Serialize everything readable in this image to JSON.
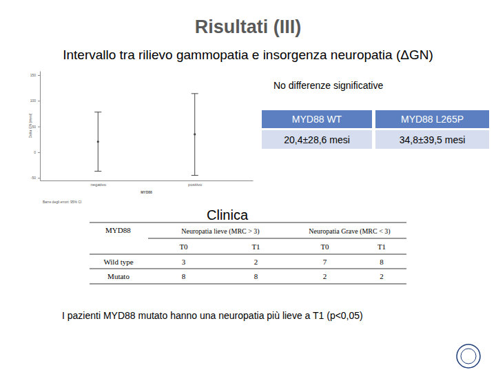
{
  "slide": {
    "title": "Risultati (III)",
    "subtitle": "Intervallo tra rilievo gammopatia e insorgenza neuropatia (ΔGN)",
    "significance_note": "No differenze significative",
    "summary_table": {
      "headers": [
        "MYD88 WT",
        "MYD88 L265P"
      ],
      "values": [
        "20,4±28,6 mesi",
        "34,8±39,5 mesi"
      ]
    },
    "section_title": "Clinica",
    "clinic_table": {
      "corner": "MYD88",
      "groups": [
        "Neuropatia lieve (MRC > 3)",
        "Neuropatia Grave (MRC < 3)"
      ],
      "subheaders": [
        "T0",
        "T1",
        "T0",
        "T1"
      ],
      "rows": [
        {
          "label": "Wild type",
          "values": [
            3,
            2,
            7,
            8
          ]
        },
        {
          "label": "Mutato",
          "values": [
            8,
            8,
            2,
            2
          ]
        }
      ]
    },
    "conclusion": "I pazienti MYD88 mutato hanno una neuropatia più lieve a T1 (p<0,05)"
  },
  "chart_data": {
    "type": "errorbar",
    "x_label": "MYD88",
    "y_label": "Delta GN (mesi)",
    "note": "Barre degli errori: 95% CI",
    "categories": [
      "negativo",
      "positivo"
    ],
    "values": [
      20.4,
      34.8
    ],
    "ci_low": [
      -37,
      -45
    ],
    "ci_high": [
      78,
      114
    ],
    "color": "#444444",
    "ylim": [
      -55,
      158
    ],
    "yticks": [
      -50,
      0,
      50,
      100,
      150
    ],
    "grid": false
  }
}
